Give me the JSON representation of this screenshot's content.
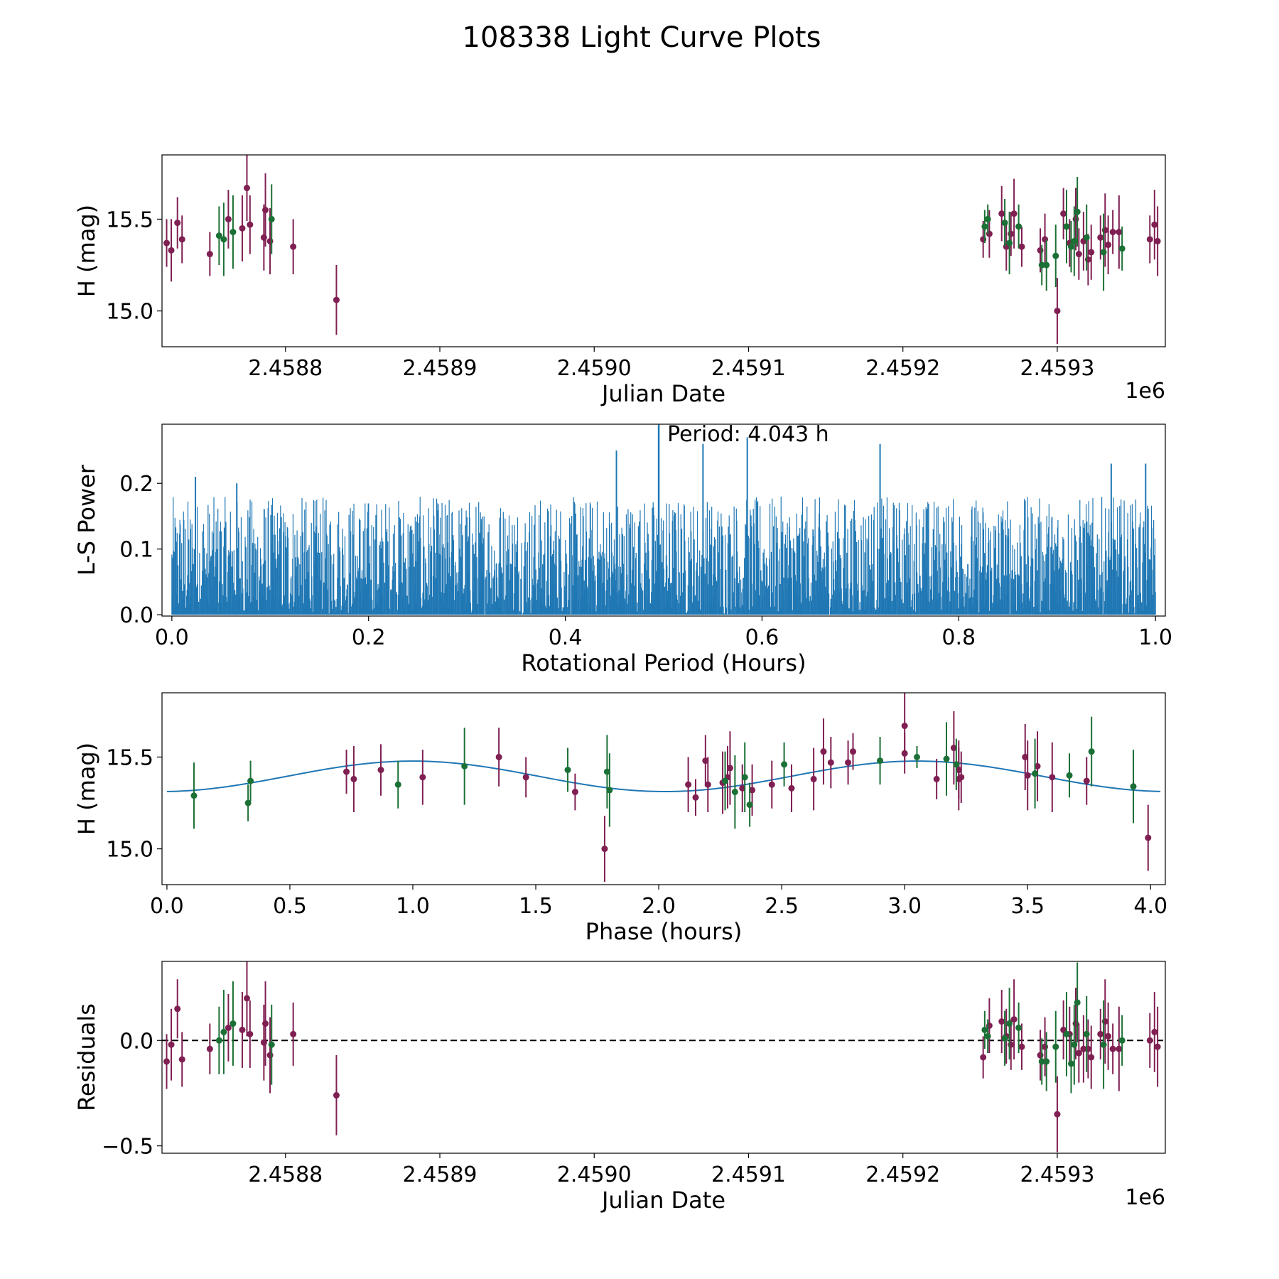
{
  "figure": {
    "title": "108338 Light Curve Plots"
  },
  "colors": {
    "magenta": "#7f1f52",
    "green": "#1b7035",
    "blue": "#1f77b4",
    "axis": "#000000"
  },
  "chart_data": [
    {
      "id": "light-curve",
      "type": "scatter",
      "title": "",
      "xlabel": "Julian Date",
      "ylabel": "H (mag)",
      "x_offset_label": "1e6",
      "xlim": [
        2458720,
        2459370
      ],
      "ylim": [
        14.805,
        15.85
      ],
      "xticks": [
        2458800,
        2458900,
        2459000,
        2459100,
        2459200,
        2459300
      ],
      "xtick_labels": [
        "2.4588",
        "2.4589",
        "2.4590",
        "2.4591",
        "2.4592",
        "2.4593"
      ],
      "yticks": [
        15.0,
        15.5
      ],
      "ytick_labels": [
        "15.0",
        "15.5"
      ],
      "series": [
        {
          "name": "magenta",
          "x": [
            2458723,
            2458726,
            2458730,
            2458733,
            2458751,
            2458763,
            2458772,
            2458775,
            2458777,
            2458786,
            2458787,
            2458790,
            2458805,
            2458833,
            2459252,
            2459256,
            2459264,
            2459267,
            2459270,
            2459272,
            2459277,
            2459289,
            2459292,
            2459300,
            2459304,
            2459308,
            2459312,
            2459314,
            2459317,
            2459320,
            2459322,
            2459328,
            2459331,
            2459333,
            2459336,
            2459340,
            2459360,
            2459363,
            2459365
          ],
          "y": [
            15.37,
            15.33,
            15.48,
            15.39,
            15.31,
            15.5,
            15.45,
            15.67,
            15.47,
            15.4,
            15.55,
            15.38,
            15.35,
            15.06,
            15.39,
            15.42,
            15.53,
            15.35,
            15.42,
            15.53,
            15.35,
            15.33,
            15.39,
            15.0,
            15.53,
            15.37,
            15.5,
            15.31,
            15.38,
            15.28,
            15.32,
            15.4,
            15.44,
            15.36,
            15.43,
            15.43,
            15.39,
            15.47,
            15.38
          ],
          "err": [
            0.13,
            0.17,
            0.14,
            0.13,
            0.12,
            0.16,
            0.18,
            0.18,
            0.16,
            0.18,
            0.2,
            0.18,
            0.15,
            0.19,
            0.1,
            0.13,
            0.15,
            0.13,
            0.12,
            0.19,
            0.11,
            0.12,
            0.14,
            0.18,
            0.14,
            0.13,
            0.17,
            0.14,
            0.16,
            0.14,
            0.15,
            0.12,
            0.2,
            0.16,
            0.12,
            0.2,
            0.13,
            0.19,
            0.19
          ]
        },
        {
          "name": "green",
          "x": [
            2458757,
            2458760,
            2458766,
            2458791,
            2459253,
            2459255,
            2459266,
            2459269,
            2459275,
            2459290,
            2459293,
            2459299,
            2459306,
            2459309,
            2459311,
            2459313,
            2459319,
            2459330,
            2459342
          ],
          "y": [
            15.41,
            15.39,
            15.43,
            15.5,
            15.46,
            15.5,
            15.48,
            15.37,
            15.46,
            15.25,
            15.25,
            15.3,
            15.46,
            15.35,
            15.38,
            15.54,
            15.4,
            15.32,
            15.34
          ],
          "err": [
            0.16,
            0.2,
            0.2,
            0.19,
            0.09,
            0.08,
            0.13,
            0.17,
            0.12,
            0.11,
            0.14,
            0.17,
            0.2,
            0.14,
            0.19,
            0.19,
            0.18,
            0.21,
            0.12
          ]
        }
      ]
    },
    {
      "id": "periodogram",
      "type": "line",
      "title": "",
      "annotation": "Period: 4.043 h",
      "xlabel": "Rotational Period (Hours)",
      "ylabel": "L-S Power",
      "xlim": [
        -0.01,
        1.01
      ],
      "ylim": [
        -0.002,
        0.29
      ],
      "xticks": [
        0.0,
        0.2,
        0.4,
        0.6,
        0.8,
        1.0
      ],
      "xtick_labels": [
        "0.0",
        "0.2",
        "0.4",
        "0.6",
        "0.8",
        "1.0"
      ],
      "yticks": [
        0.0,
        0.1,
        0.2
      ],
      "ytick_labels": [
        "0.0",
        "0.1",
        "0.2"
      ],
      "x_range": [
        0.0,
        1.0
      ],
      "n_samples": 2200,
      "power_envelope": 0.18,
      "peak_x": 0.495,
      "peak_power": 0.29,
      "secondary_peaks": [
        {
          "x": 0.452,
          "power": 0.25
        },
        {
          "x": 0.54,
          "power": 0.26
        },
        {
          "x": 0.585,
          "power": 0.27
        },
        {
          "x": 0.72,
          "power": 0.26
        },
        {
          "x": 0.024,
          "power": 0.21
        },
        {
          "x": 0.066,
          "power": 0.2
        },
        {
          "x": 0.99,
          "power": 0.23
        },
        {
          "x": 0.955,
          "power": 0.23
        }
      ]
    },
    {
      "id": "phase-folded",
      "type": "scatter",
      "title": "",
      "xlabel": "Phase (hours)",
      "ylabel": "H (mag)",
      "xlim": [
        -0.02,
        4.06
      ],
      "ylim": [
        14.805,
        15.85
      ],
      "xticks": [
        0.0,
        0.5,
        1.0,
        1.5,
        2.0,
        2.5,
        3.0,
        3.5,
        4.0
      ],
      "xtick_labels": [
        "0.0",
        "0.5",
        "1.0",
        "1.5",
        "2.0",
        "2.5",
        "3.0",
        "3.5",
        "4.0"
      ],
      "yticks": [
        15.0,
        15.5
      ],
      "ytick_labels": [
        "15.0",
        "15.5"
      ],
      "fit": {
        "name": "sinusoid fit",
        "mean": 15.395,
        "amplitude": 0.083,
        "peak_phase": 1.0,
        "period": 2.05,
        "x_range": [
          0.0,
          4.04
        ]
      },
      "series": [
        {
          "name": "magenta",
          "x": [
            0.73,
            0.76,
            0.87,
            1.04,
            1.35,
            1.46,
            1.66,
            1.78,
            2.12,
            2.15,
            2.19,
            2.2,
            2.26,
            2.28,
            2.29,
            2.34,
            2.38,
            2.46,
            2.54,
            2.63,
            2.67,
            2.7,
            2.77,
            2.79,
            3.0,
            3.0,
            3.13,
            3.2,
            3.22,
            3.22,
            3.23,
            3.49,
            3.5,
            3.54,
            3.6,
            3.74,
            3.99
          ],
          "y": [
            15.42,
            15.38,
            15.43,
            15.39,
            15.5,
            15.39,
            15.31,
            15.0,
            15.35,
            15.28,
            15.48,
            15.35,
            15.36,
            15.39,
            15.44,
            15.33,
            15.32,
            15.35,
            15.33,
            15.38,
            15.53,
            15.47,
            15.47,
            15.53,
            15.52,
            15.67,
            15.38,
            15.55,
            15.38,
            15.43,
            15.39,
            15.5,
            15.4,
            15.45,
            15.39,
            15.37,
            15.06
          ],
          "err": [
            0.12,
            0.18,
            0.14,
            0.15,
            0.16,
            0.11,
            0.1,
            0.18,
            0.15,
            0.1,
            0.14,
            0.15,
            0.17,
            0.17,
            0.2,
            0.13,
            0.14,
            0.13,
            0.13,
            0.17,
            0.18,
            0.14,
            0.12,
            0.1,
            0.11,
            0.19,
            0.11,
            0.2,
            0.17,
            0.16,
            0.14,
            0.18,
            0.19,
            0.19,
            0.19,
            0.13,
            0.18
          ]
        },
        {
          "name": "green",
          "x": [
            0.11,
            0.33,
            0.34,
            0.94,
            1.21,
            1.63,
            1.79,
            1.8,
            2.27,
            2.31,
            2.35,
            2.37,
            2.51,
            2.9,
            3.05,
            3.17,
            3.21,
            3.53,
            3.67,
            3.76,
            3.93
          ],
          "y": [
            15.29,
            15.25,
            15.37,
            15.35,
            15.45,
            15.43,
            15.42,
            15.32,
            15.37,
            15.31,
            15.39,
            15.24,
            15.46,
            15.48,
            15.5,
            15.49,
            15.46,
            15.41,
            15.4,
            15.53,
            15.34
          ],
          "err": [
            0.18,
            0.1,
            0.11,
            0.13,
            0.21,
            0.12,
            0.2,
            0.2,
            0.16,
            0.2,
            0.19,
            0.12,
            0.12,
            0.13,
            0.06,
            0.2,
            0.14,
            0.19,
            0.12,
            0.19,
            0.2
          ]
        }
      ]
    },
    {
      "id": "residuals",
      "type": "scatter",
      "title": "",
      "xlabel": "Julian Date",
      "ylabel": "Residuals",
      "x_offset_label": "1e6",
      "xlim": [
        2458720,
        2459370
      ],
      "ylim": [
        -0.535,
        0.375
      ],
      "xticks": [
        2458800,
        2458900,
        2459000,
        2459100,
        2459200,
        2459300
      ],
      "xtick_labels": [
        "2.4588",
        "2.4589",
        "2.4590",
        "2.4591",
        "2.4592",
        "2.4593"
      ],
      "yticks": [
        -0.5,
        0.0
      ],
      "ytick_labels": [
        "−0.5",
        "0.0"
      ],
      "reference_line": 0.0,
      "series": [
        {
          "name": "magenta",
          "x": [
            2458723,
            2458726,
            2458730,
            2458733,
            2458751,
            2458763,
            2458772,
            2458775,
            2458777,
            2458786,
            2458787,
            2458790,
            2458805,
            2458833,
            2459252,
            2459256,
            2459264,
            2459267,
            2459270,
            2459272,
            2459277,
            2459289,
            2459292,
            2459300,
            2459304,
            2459308,
            2459312,
            2459314,
            2459317,
            2459320,
            2459322,
            2459328,
            2459331,
            2459333,
            2459336,
            2459340,
            2459360,
            2459363,
            2459365
          ],
          "y": [
            -0.1,
            -0.02,
            0.15,
            -0.09,
            -0.04,
            0.06,
            0.05,
            0.2,
            0.03,
            -0.01,
            0.08,
            -0.07,
            0.03,
            -0.26,
            -0.08,
            0.07,
            0.09,
            0.02,
            -0.02,
            0.1,
            -0.03,
            -0.07,
            -0.03,
            -0.35,
            0.05,
            0.03,
            0.08,
            -0.06,
            -0.04,
            -0.04,
            -0.08,
            0.03,
            0.09,
            0.02,
            -0.04,
            -0.04,
            0.0,
            0.04,
            -0.03
          ],
          "err": [
            0.13,
            0.17,
            0.14,
            0.13,
            0.12,
            0.16,
            0.18,
            0.18,
            0.16,
            0.18,
            0.2,
            0.18,
            0.15,
            0.19,
            0.1,
            0.13,
            0.15,
            0.13,
            0.12,
            0.19,
            0.11,
            0.12,
            0.14,
            0.18,
            0.14,
            0.13,
            0.17,
            0.14,
            0.16,
            0.14,
            0.15,
            0.12,
            0.2,
            0.16,
            0.12,
            0.2,
            0.13,
            0.19,
            0.19
          ]
        },
        {
          "name": "green",
          "x": [
            2458757,
            2458760,
            2458766,
            2458791,
            2459253,
            2459255,
            2459266,
            2459269,
            2459275,
            2459290,
            2459293,
            2459299,
            2459306,
            2459309,
            2459311,
            2459313,
            2459319,
            2459330,
            2459342
          ],
          "y": [
            0.0,
            0.04,
            0.08,
            -0.02,
            0.05,
            0.02,
            0.01,
            0.08,
            0.06,
            -0.1,
            -0.1,
            -0.03,
            0.03,
            -0.11,
            -0.02,
            0.18,
            0.03,
            -0.02,
            0.0
          ],
          "err": [
            0.16,
            0.2,
            0.2,
            0.19,
            0.09,
            0.08,
            0.13,
            0.17,
            0.12,
            0.11,
            0.14,
            0.17,
            0.2,
            0.14,
            0.19,
            0.19,
            0.18,
            0.21,
            0.12
          ]
        }
      ]
    }
  ]
}
